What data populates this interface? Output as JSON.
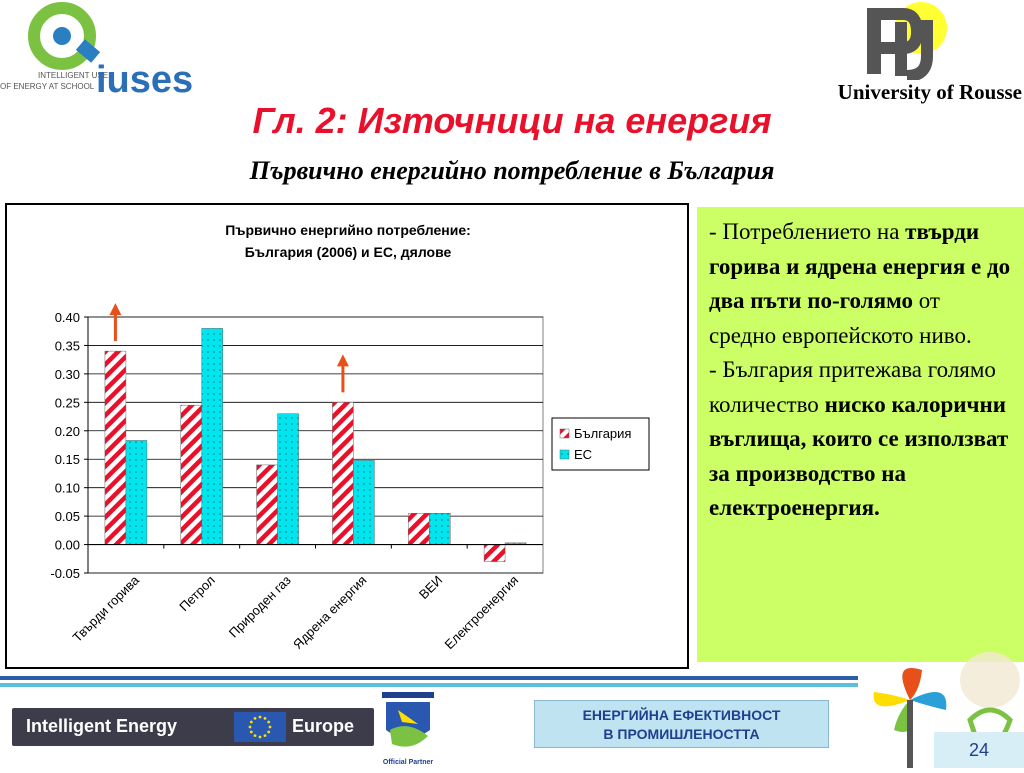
{
  "header": {
    "iuses_small_text_1": "INTELLIGENT USE",
    "iuses_small_text_2": "OF ENERGY AT SCHOOL",
    "iuses_word": "iuses",
    "university": "University of Rousse"
  },
  "slide": {
    "title": "Гл. 2: Източници на енергия",
    "subtitle": "Първично енергийно потребление в България"
  },
  "chart_data": {
    "type": "bar",
    "title": "Първично енергийно потребление:",
    "subtitle": "България (2006) и ЕС, дялове",
    "categories": [
      "Твърди горива",
      "Петрол",
      "Природен газ",
      "Ядрена енергия",
      "ВЕИ",
      "Електроенергия"
    ],
    "series": [
      {
        "name": "България",
        "values": [
          0.34,
          0.245,
          0.14,
          0.25,
          0.055,
          -0.03
        ],
        "color": "#e8102a",
        "pattern": "diagonal-stripes"
      },
      {
        "name": "ЕС",
        "values": [
          0.183,
          0.38,
          0.23,
          0.148,
          0.055,
          0.003
        ],
        "color": "#00e5ee",
        "pattern": "dots"
      }
    ],
    "ylim": [
      -0.05,
      0.4
    ],
    "yticks": [
      "-0.05",
      "0.00",
      "0.05",
      "0.10",
      "0.15",
      "0.20",
      "0.25",
      "0.30",
      "0.35",
      "0.40"
    ],
    "grid": true,
    "legend": "right",
    "arrows_on_categories": [
      "Твърди горива",
      "Ядрена енергия"
    ],
    "arrow_color": "#e8501a"
  },
  "panel": {
    "p1_a": "- Потреблението на ",
    "p1_b": "твърди горива и ядрена енергия е до два пъти по-голямо",
    "p1_c": " от средно европейското ниво.",
    "p2_a": "- България притежава голямо количество ",
    "p2_b": "ниско калорични въглища, които  се използват за производство на електроенергия."
  },
  "footer": {
    "ie_left": "Intelligent Energy",
    "ie_right": "Europe",
    "partner_label": "Official Partner",
    "box_line1": "ЕНЕРГИЙНА ЕФЕКТИВНОСТ",
    "box_line2": "В ПРОМИШЛЕНОСТТА",
    "page_number": "24"
  }
}
